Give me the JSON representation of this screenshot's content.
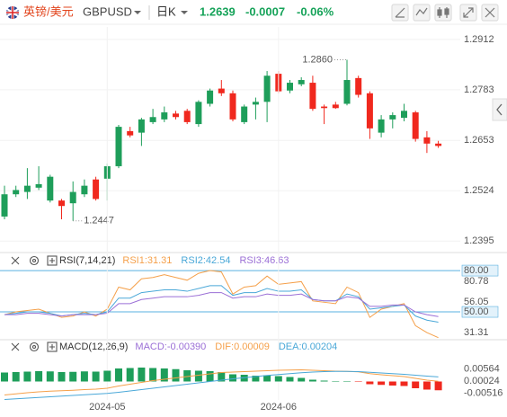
{
  "header": {
    "name": "英镑/美元",
    "symbol": "GBPUSD",
    "period": "日K",
    "price": "1.2639",
    "change": "-0.0007",
    "change_pct": "-0.06%",
    "color": "#17a35a"
  },
  "chart_data": [
    {
      "type": "candlestick",
      "up_color": "#1e9e5a",
      "down_color": "#f0281e",
      "open": [
        1.2458,
        1.2515,
        1.2521,
        1.2532,
        1.2499,
        1.2499,
        1.2492,
        1.2515,
        1.2553,
        1.2555,
        1.2587,
        1.2677,
        1.2673,
        1.27,
        1.2707,
        1.2722,
        1.2729,
        1.2695,
        1.2747,
        1.2786,
        1.2774,
        1.27,
        1.2745,
        1.2752,
        1.2824,
        1.2781,
        1.2797,
        1.2801,
        1.274,
        1.2745,
        1.2747,
        1.2813,
        1.2774,
        1.2673,
        1.2707,
        1.2711,
        1.2725,
        1.2661,
        1.2645
      ],
      "high": [
        1.2537,
        1.2537,
        1.2582,
        1.2587,
        1.2565,
        1.2503,
        1.2548,
        1.2553,
        1.256,
        1.2594,
        1.2693,
        1.2688,
        1.2711,
        1.2734,
        1.274,
        1.2729,
        1.2734,
        1.2756,
        1.2786,
        1.2808,
        1.2781,
        1.2745,
        1.2763,
        1.2831,
        1.2831,
        1.2808,
        1.2815,
        1.2819,
        1.2745,
        1.2752,
        1.286,
        1.2819,
        1.2779,
        1.2718,
        1.2725,
        1.2747,
        1.2729,
        1.2677,
        1.2652
      ],
      "low": [
        1.2451,
        1.2508,
        1.2503,
        1.2526,
        1.2494,
        1.2451,
        1.2447,
        1.2508,
        1.2499,
        1.2499,
        1.2582,
        1.2661,
        1.2639,
        1.2695,
        1.27,
        1.2707,
        1.2695,
        1.2688,
        1.274,
        1.2767,
        1.2702,
        1.2695,
        1.2707,
        1.27,
        1.2774,
        1.2774,
        1.2792,
        1.2729,
        1.2695,
        1.2734,
        1.2743,
        1.2763,
        1.2657,
        1.2661,
        1.2684,
        1.2702,
        1.265,
        1.2621,
        1.2634
      ],
      "close": [
        1.2515,
        1.2526,
        1.2537,
        1.2541,
        1.256,
        1.2485,
        1.2521,
        1.2537,
        1.2503,
        1.2587,
        1.2688,
        1.2666,
        1.2707,
        1.2713,
        1.2725,
        1.2713,
        1.27,
        1.2752,
        1.2781,
        1.2774,
        1.2707,
        1.274,
        1.2752,
        1.2819,
        1.2779,
        1.2801,
        1.2808,
        1.2734,
        1.2736,
        1.2736,
        1.2808,
        1.277,
        1.2684,
        1.2707,
        1.2718,
        1.2729,
        1.2657,
        1.2645,
        1.2639
      ],
      "ylim": [
        1.2368,
        1.2944
      ],
      "yticks": [
        1.2912,
        1.2783,
        1.2653,
        1.2524,
        1.2395
      ],
      "grid": true,
      "annotations": [
        {
          "value": 1.286,
          "label": "1.2860"
        },
        {
          "value": 1.2447,
          "label": "1.2447"
        }
      ]
    },
    {
      "type": "line",
      "title": "RSI(7,14,21)",
      "series": [
        {
          "name": "RSI1:31.31",
          "color": "#f5a04a",
          "values": [
            48,
            50,
            51,
            52,
            49,
            46,
            47,
            50,
            47,
            52,
            68,
            66,
            74,
            75,
            77,
            75,
            73,
            78,
            80,
            79,
            63,
            68,
            69,
            76,
            70,
            71,
            72,
            58,
            57,
            56,
            68,
            64,
            46,
            52,
            54,
            56,
            40,
            35,
            31.31
          ]
        },
        {
          "name": "RSI2:42.54",
          "color": "#4aa8d8",
          "values": [
            48,
            49,
            50,
            50,
            49,
            47,
            48,
            49,
            48,
            50,
            60,
            60,
            64,
            65,
            66,
            66,
            65,
            67,
            69,
            69,
            62,
            64,
            64,
            67,
            65,
            65,
            66,
            59,
            58,
            58,
            63,
            61,
            52,
            53,
            54,
            55,
            47,
            44,
            42.54
          ]
        },
        {
          "name": "RSI3:46.63",
          "color": "#9b6fd6",
          "values": [
            48,
            48,
            49,
            49,
            48,
            47,
            48,
            48,
            48,
            49,
            56,
            56,
            59,
            60,
            61,
            61,
            61,
            62,
            64,
            64,
            60,
            61,
            61,
            63,
            62,
            62,
            63,
            59,
            58,
            58,
            61,
            60,
            54,
            54,
            55,
            55,
            50,
            48,
            46.63
          ]
        }
      ],
      "ylim": [
        29.8,
        82
      ],
      "levels": [
        {
          "value": 80,
          "label": "80.00"
        },
        {
          "value": 50,
          "label": "50.00"
        }
      ],
      "level_color": "#5ab0e0",
      "yticks": [
        80.78,
        56.05,
        31.31
      ]
    },
    {
      "type": "bar",
      "title": "MACD(12,26,9)",
      "categories": [
        null,
        null,
        null,
        null,
        null,
        null,
        null,
        null,
        null,
        "2024-05",
        null,
        null,
        null,
        null,
        null,
        null,
        null,
        null,
        null,
        null,
        null,
        null,
        null,
        null,
        "2024-06",
        null,
        null,
        null,
        null,
        null,
        null,
        null,
        null,
        null,
        null,
        null,
        null,
        null,
        null
      ],
      "series": [
        {
          "name": "MACD:-0.00390",
          "type": "bar",
          "color": "#9b6fd6",
          "up_color": "#1e9e5a",
          "down_color": "#f0281e",
          "values": [
            0.004,
            0.0042,
            0.0044,
            0.0046,
            0.0045,
            0.0042,
            0.0043,
            0.0045,
            0.0044,
            0.0048,
            0.0058,
            0.006,
            0.0062,
            0.006,
            0.0058,
            0.0055,
            0.005,
            0.0048,
            0.0046,
            0.0042,
            0.0032,
            0.003,
            0.0026,
            0.0028,
            0.0024,
            0.002,
            0.0016,
            0.0008,
            0.0004,
            0.0001,
            0.0002,
            -0.0002,
            -0.0012,
            -0.0015,
            -0.0018,
            -0.002,
            -0.003,
            -0.0036,
            -0.0039
          ]
        },
        {
          "name": "DIF:0.00009",
          "type": "line",
          "color": "#f5a04a",
          "values": [
            -0.006,
            -0.0055,
            -0.005,
            -0.0046,
            -0.0043,
            -0.0041,
            -0.0039,
            -0.0036,
            -0.0034,
            -0.003,
            -0.002,
            -0.0012,
            -0.0004,
            0.0004,
            0.001,
            0.0016,
            0.0022,
            0.0028,
            0.0034,
            0.004,
            0.0042,
            0.0044,
            0.0046,
            0.0048,
            0.005,
            0.0051,
            0.0052,
            0.005,
            0.0048,
            0.0046,
            0.0045,
            0.0043,
            0.0035,
            0.003,
            0.0026,
            0.0022,
            0.0014,
            0.0006,
            9e-05
          ]
        },
        {
          "name": "DEA:0.00204",
          "type": "line",
          "color": "#4aa8d8",
          "values": [
            -0.008,
            -0.0077,
            -0.0074,
            -0.0071,
            -0.0068,
            -0.0065,
            -0.0062,
            -0.0059,
            -0.0056,
            -0.0053,
            -0.0048,
            -0.0042,
            -0.0036,
            -0.003,
            -0.0024,
            -0.0018,
            -0.0012,
            -0.0006,
            0.0,
            0.0006,
            0.0012,
            0.0017,
            0.0022,
            0.0027,
            0.0031,
            0.0035,
            0.0039,
            0.0042,
            0.0044,
            0.0045,
            0.0045,
            0.0044,
            0.0041,
            0.0038,
            0.0035,
            0.0032,
            0.0028,
            0.0024,
            0.00204
          ]
        }
      ],
      "ylim": [
        -0.0082,
        0.0118
      ],
      "yticks": [
        0.00564,
        0.00024,
        -0.00516
      ]
    }
  ]
}
